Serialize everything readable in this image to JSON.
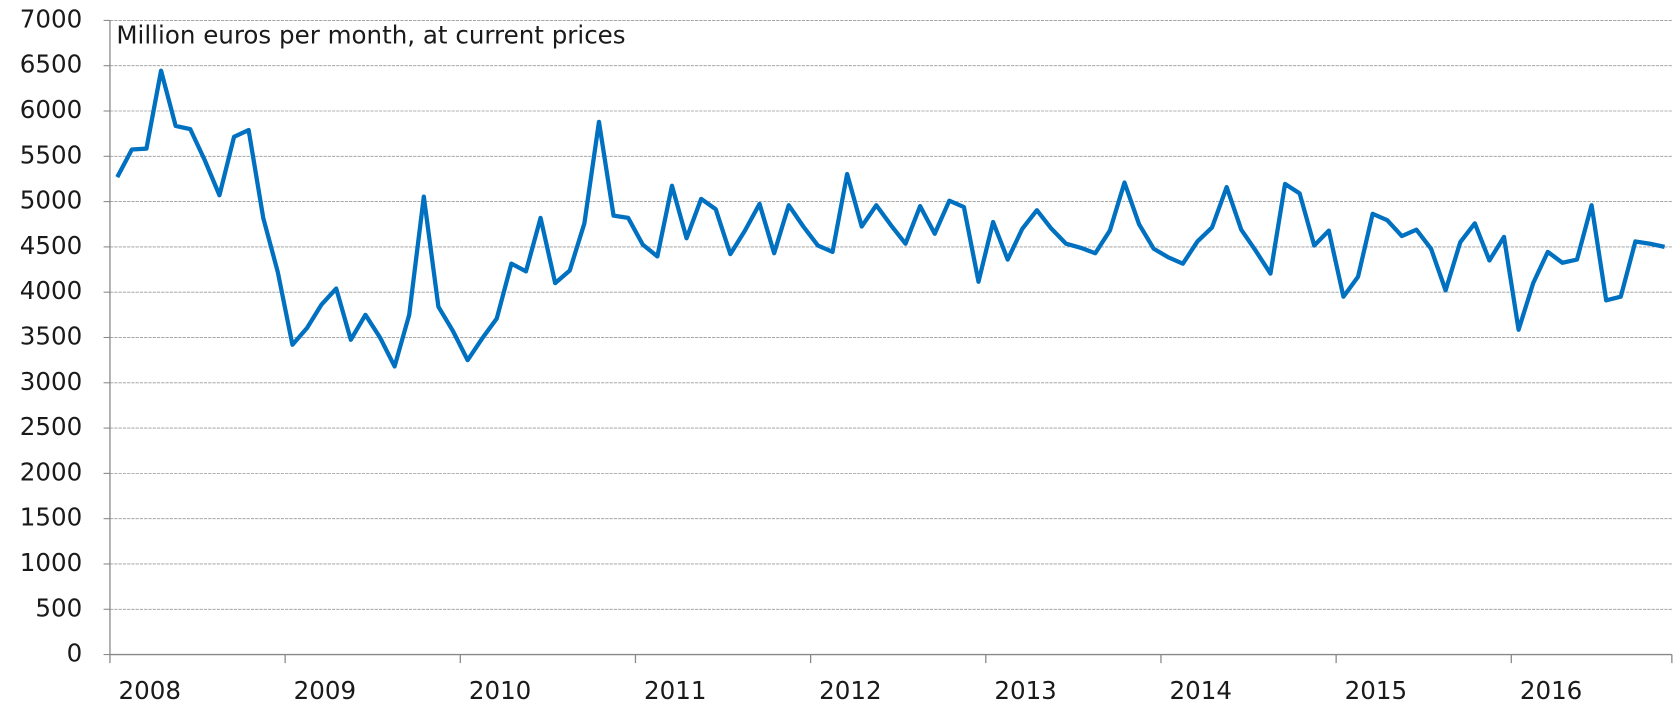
{
  "chart_data": {
    "type": "line",
    "annotation": "Million euros per month, at current prices",
    "categories": [
      "2008",
      null,
      null,
      null,
      null,
      null,
      null,
      null,
      null,
      null,
      null,
      null,
      "2009",
      null,
      null,
      null,
      null,
      null,
      null,
      null,
      null,
      null,
      null,
      null,
      "2010",
      null,
      null,
      null,
      null,
      null,
      null,
      null,
      null,
      null,
      null,
      null,
      "2011",
      null,
      null,
      null,
      null,
      null,
      null,
      null,
      null,
      null,
      null,
      null,
      "2012",
      null,
      null,
      null,
      null,
      null,
      null,
      null,
      null,
      null,
      null,
      null,
      "2013",
      null,
      null,
      null,
      null,
      null,
      null,
      null,
      null,
      null,
      null,
      null,
      "2014",
      null,
      null,
      null,
      null,
      null,
      null,
      null,
      null,
      null,
      null,
      null,
      "2015",
      null,
      null,
      null,
      null,
      null,
      null,
      null,
      null,
      null,
      null,
      null,
      "2016",
      null,
      null,
      null,
      null,
      null,
      null,
      null,
      null,
      null,
      null
    ],
    "series": [
      {
        "color": "#0070c0",
        "values": [
          5270,
          5575,
          5585,
          6445,
          5835,
          5800,
          5455,
          5070,
          5715,
          5790,
          4820,
          4220,
          3420,
          3605,
          3865,
          4040,
          3475,
          3750,
          3500,
          3180,
          3750,
          5055,
          3840,
          3570,
          3250,
          3490,
          3710,
          4315,
          4230,
          4820,
          4100,
          4240,
          4760,
          5880,
          4845,
          4820,
          4525,
          4395,
          5175,
          4595,
          5030,
          4915,
          4420,
          4680,
          4975,
          4430,
          4960,
          4725,
          4515,
          4445,
          5305,
          4725,
          4960,
          4740,
          4535,
          4950,
          4645,
          5010,
          4940,
          4115,
          4775,
          4360,
          4700,
          4905,
          4700,
          4535,
          4490,
          4430,
          4680,
          5210,
          4750,
          4480,
          4385,
          4315,
          4560,
          4715,
          5160,
          4690,
          4455,
          4205,
          5195,
          5090,
          4515,
          4680,
          3950,
          4170,
          4865,
          4795,
          4620,
          4690,
          4480,
          4020,
          4550,
          4760,
          4350,
          4610,
          3585,
          4100,
          4445,
          4325,
          4360,
          4960,
          3910,
          3950,
          4560,
          4535,
          4500
        ]
      }
    ],
    "ylim": [
      0,
      7000
    ],
    "yticks": [
      0,
      500,
      1000,
      1500,
      2000,
      2500,
      3000,
      3500,
      4000,
      4500,
      5000,
      5500,
      6000,
      6500,
      7000
    ],
    "grid": true
  }
}
